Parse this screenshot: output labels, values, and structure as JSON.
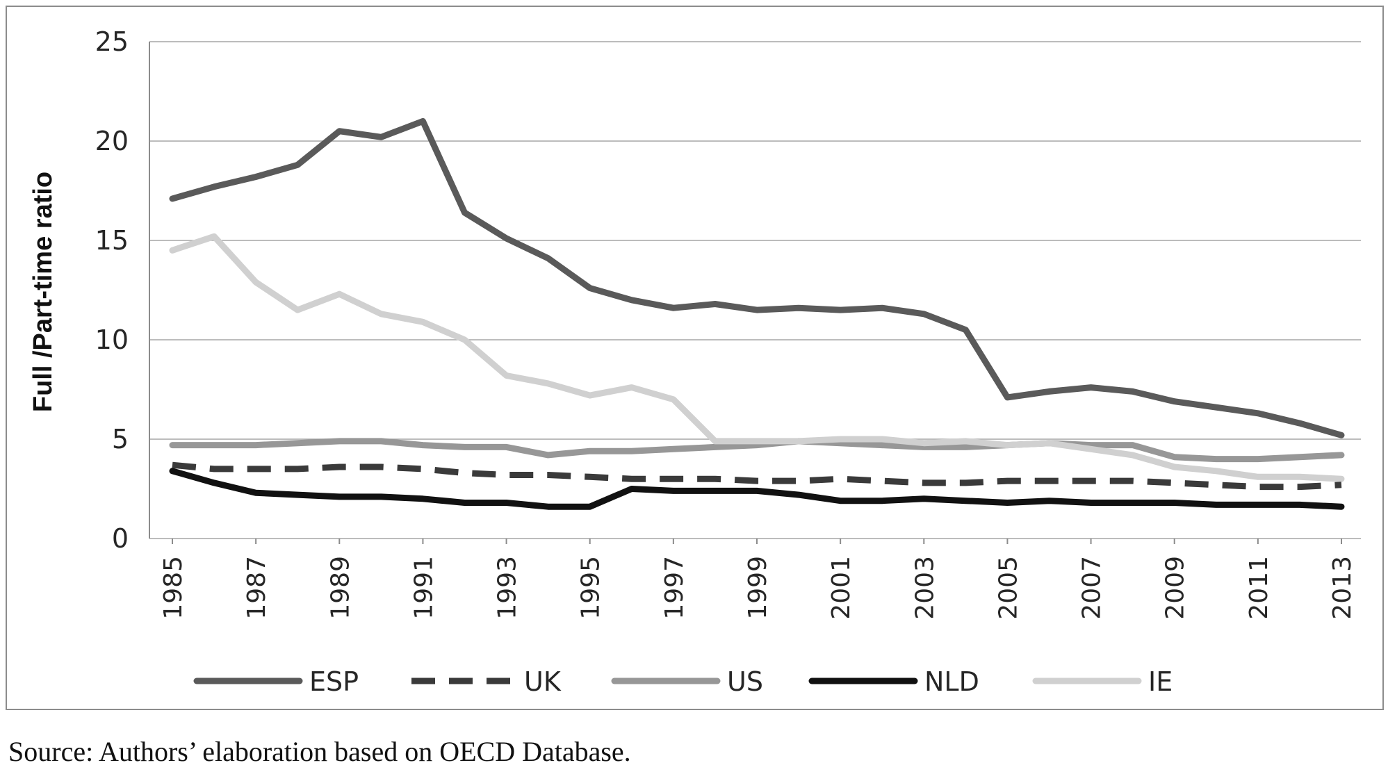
{
  "chart_data": {
    "type": "line",
    "title": "",
    "ylabel": "Full /Part-time ratio",
    "xlabel": "",
    "ylim": [
      0,
      25
    ],
    "yticks": [
      0,
      5,
      10,
      15,
      20,
      25
    ],
    "x": [
      1985,
      1986,
      1987,
      1988,
      1989,
      1990,
      1991,
      1992,
      1993,
      1994,
      1995,
      1996,
      1997,
      1998,
      1999,
      2000,
      2001,
      2002,
      2003,
      2004,
      2005,
      2006,
      2007,
      2008,
      2009,
      2010,
      2011,
      2012,
      2013
    ],
    "xtick_labels": [
      "1985",
      "1987",
      "1989",
      "1991",
      "1993",
      "1995",
      "1997",
      "1999",
      "2001",
      "2003",
      "2005",
      "2007",
      "2009",
      "2011",
      "2013"
    ],
    "grid": true,
    "legend_position": "bottom",
    "series": [
      {
        "name": "ESP",
        "color": "#5a5a5a",
        "dash": "solid",
        "values": [
          17.1,
          17.7,
          18.2,
          18.8,
          20.5,
          20.2,
          21.0,
          16.4,
          15.1,
          14.1,
          12.6,
          12.0,
          11.6,
          11.8,
          11.5,
          11.6,
          11.5,
          11.6,
          11.3,
          10.5,
          7.1,
          7.4,
          7.6,
          7.4,
          6.9,
          6.6,
          6.3,
          5.8,
          5.2
        ]
      },
      {
        "name": "UK",
        "color": "#3a3a3a",
        "dash": "dashed",
        "values": [
          3.7,
          3.5,
          3.5,
          3.5,
          3.6,
          3.6,
          3.5,
          3.3,
          3.2,
          3.2,
          3.1,
          3.0,
          3.0,
          3.0,
          2.9,
          2.9,
          3.0,
          2.9,
          2.8,
          2.8,
          2.9,
          2.9,
          2.9,
          2.9,
          2.8,
          2.7,
          2.6,
          2.6,
          2.7
        ]
      },
      {
        "name": "US",
        "color": "#979797",
        "dash": "solid",
        "values": [
          4.7,
          4.7,
          4.7,
          4.8,
          4.9,
          4.9,
          4.7,
          4.6,
          4.6,
          4.2,
          4.4,
          4.4,
          4.5,
          4.6,
          4.7,
          4.9,
          4.8,
          4.7,
          4.6,
          4.6,
          4.7,
          4.8,
          4.7,
          4.7,
          4.1,
          4.0,
          4.0,
          4.1,
          4.2
        ]
      },
      {
        "name": "NLD",
        "color": "#111111",
        "dash": "solid",
        "values": [
          3.4,
          2.8,
          2.3,
          2.2,
          2.1,
          2.1,
          2.0,
          1.8,
          1.8,
          1.6,
          1.6,
          2.5,
          2.4,
          2.4,
          2.4,
          2.2,
          1.9,
          1.9,
          2.0,
          1.9,
          1.8,
          1.9,
          1.8,
          1.8,
          1.8,
          1.7,
          1.7,
          1.7,
          1.6
        ]
      },
      {
        "name": "IE",
        "color": "#d0d0d0",
        "dash": "solid",
        "values": [
          14.5,
          15.2,
          12.9,
          11.5,
          12.3,
          11.3,
          10.9,
          10.0,
          8.2,
          7.8,
          7.2,
          7.6,
          7.0,
          4.9,
          4.9,
          4.9,
          5.0,
          5.0,
          4.8,
          4.9,
          4.7,
          4.8,
          4.5,
          4.2,
          3.6,
          3.4,
          3.1,
          3.1,
          3.0
        ]
      }
    ]
  },
  "source_note": "Source: Authors’ elaboration based on OECD Database."
}
